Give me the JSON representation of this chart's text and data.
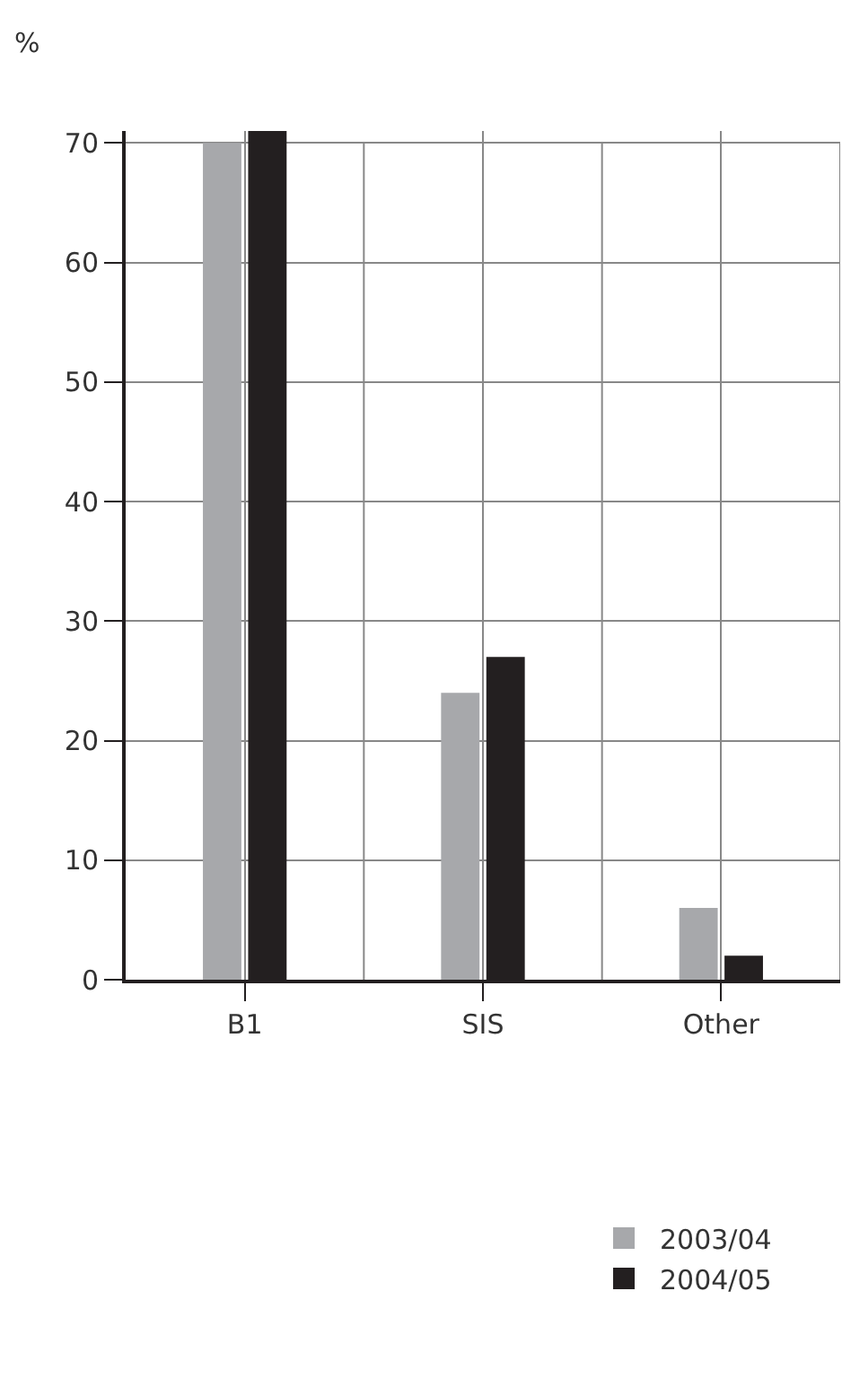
{
  "chart_data": {
    "type": "bar",
    "ylabel": "%",
    "categories": [
      "B1",
      "SIS",
      "Other"
    ],
    "series": [
      {
        "name": "2003/04",
        "color": "#a7a8ab",
        "values": [
          70,
          24,
          6
        ]
      },
      {
        "name": "2004/05",
        "color": "#231f20",
        "values": [
          71,
          27,
          2
        ]
      }
    ],
    "ylim": [
      0,
      71
    ],
    "yticks": [
      0,
      10,
      20,
      30,
      40,
      50,
      60,
      70
    ],
    "grid": true,
    "legend": "bottom right"
  }
}
